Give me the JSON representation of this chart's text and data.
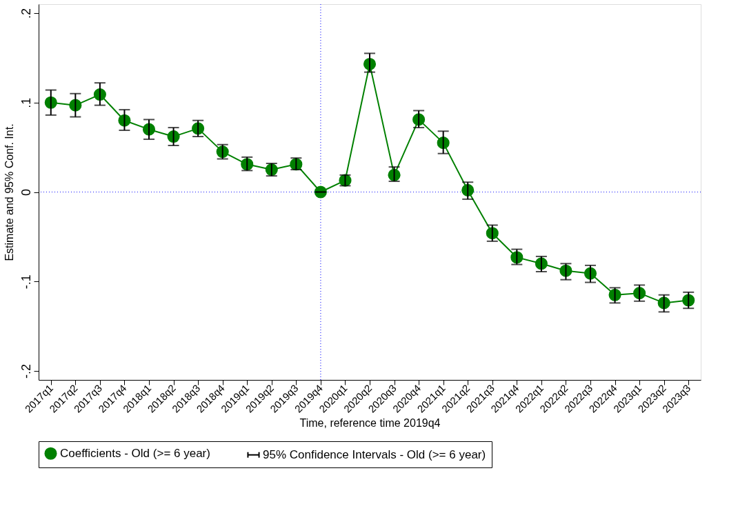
{
  "chart_data": {
    "type": "line",
    "xlabel": "Time, reference time 2019q4",
    "ylabel": "Estimate and 95% Conf. Int.",
    "categories": [
      "2017q1",
      "2017q2",
      "2017q3",
      "2017q4",
      "2018q1",
      "2018q2",
      "2018q3",
      "2018q4",
      "2019q1",
      "2019q2",
      "2019q3",
      "2019q4",
      "2020q1",
      "2020q2",
      "2020q3",
      "2020q4",
      "2021q1",
      "2021q2",
      "2021q3",
      "2021q4",
      "2022q1",
      "2022q2",
      "2022q3",
      "2022q4",
      "2023q1",
      "2023q2",
      "2023q3"
    ],
    "series": [
      {
        "name": "Coefficients - Old (>= 6 year)",
        "color": "#008000",
        "values": [
          0.1,
          0.097,
          0.109,
          0.08,
          0.07,
          0.062,
          0.071,
          0.045,
          0.031,
          0.025,
          0.031,
          0,
          0.013,
          0.143,
          0.019,
          0.081,
          0.055,
          0.002,
          -0.046,
          -0.073,
          -0.08,
          -0.088,
          -0.091,
          -0.115,
          -0.113,
          -0.124,
          -0.121
        ],
        "errors": [
          [
            0.086,
            0.114
          ],
          [
            0.084,
            0.11
          ],
          [
            0.097,
            0.122
          ],
          [
            0.069,
            0.092
          ],
          [
            0.059,
            0.081
          ],
          [
            0.052,
            0.072
          ],
          [
            0.062,
            0.08
          ],
          [
            0.037,
            0.053
          ],
          [
            0.024,
            0.039
          ],
          [
            0.018,
            0.032
          ],
          [
            0.025,
            0.038
          ],
          [
            0,
            0
          ],
          [
            0.007,
            0.019
          ],
          [
            0.134,
            0.155
          ],
          [
            0.012,
            0.028
          ],
          [
            0.072,
            0.091
          ],
          [
            0.043,
            0.068
          ],
          [
            -0.008,
            0.011
          ],
          [
            -0.055,
            -0.037
          ],
          [
            -0.081,
            -0.064
          ],
          [
            -0.089,
            -0.072
          ],
          [
            -0.098,
            -0.08
          ],
          [
            -0.101,
            -0.082
          ],
          [
            -0.124,
            -0.107
          ],
          [
            -0.122,
            -0.104
          ],
          [
            -0.134,
            -0.115
          ],
          [
            -0.13,
            -0.112
          ]
        ]
      },
      {
        "name": "95% Confidence Intervals - Old (>= 6 year)",
        "type": "other",
        "color": "#000000",
        "values": [
          null,
          null,
          null,
          null,
          null,
          null,
          null,
          null,
          null,
          null,
          null,
          null,
          null,
          null,
          null,
          null,
          null,
          null,
          null,
          null,
          null,
          null,
          null,
          null,
          null,
          null,
          null
        ]
      }
    ],
    "ylim": [
      -0.21,
      0.21
    ],
    "yticks": [
      {
        "value": -0.2,
        "label": "-.2"
      },
      {
        "value": -0.1,
        "label": "-.1"
      },
      0,
      {
        "value": 0.1,
        "label": ".1"
      },
      {
        "value": 0.2,
        "label": ".2"
      }
    ],
    "ref_lines": [
      {
        "axis": "x",
        "value": "2019q4",
        "color": "#5050ff",
        "line_style": "dotted"
      },
      {
        "axis": "y",
        "value": 0,
        "color": "#5050ff",
        "line_style": "dotted"
      }
    ],
    "grid": false,
    "legend": "bottom",
    "marker": "circle"
  }
}
